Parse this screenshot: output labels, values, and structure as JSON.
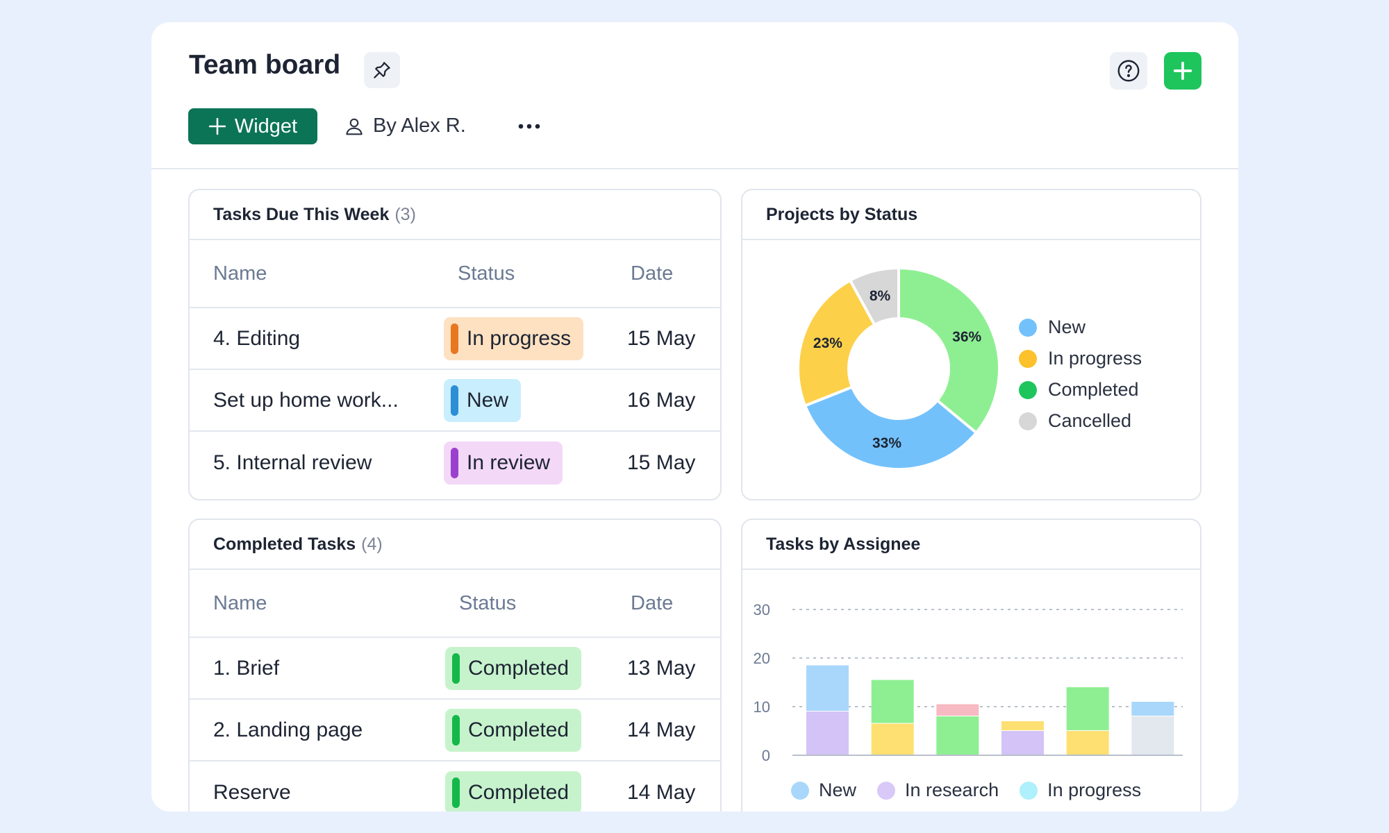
{
  "header": {
    "title": "Team board",
    "widget_label": "Widget",
    "owner": "By Alex R."
  },
  "tasks_due": {
    "title": "Tasks Due This Week",
    "count": "(3)",
    "columns": [
      "Name",
      "Status",
      "Date"
    ],
    "rows": [
      {
        "name": "4. Editing",
        "status": "In progress",
        "date": "15 May",
        "pill_bg": "#fde1c1",
        "bar_color": "#e8771f"
      },
      {
        "name": "Set up home work...",
        "status": "New",
        "date": "16 May",
        "pill_bg": "#c9eefd",
        "bar_color": "#2b8fd6"
      },
      {
        "name": "5. Internal review",
        "status": "In review",
        "date": "15 May",
        "pill_bg": "#f3d8f7",
        "bar_color": "#9b3fcf"
      }
    ]
  },
  "completed": {
    "title": "Completed Tasks",
    "count": "(4)",
    "columns": [
      "Name",
      "Status",
      "Date"
    ],
    "rows": [
      {
        "name": "1. Brief",
        "status": "Completed",
        "date": "13 May",
        "pill_bg": "#c7f3cc",
        "bar_color": "#14b84a"
      },
      {
        "name": "2. Landing page",
        "status": "Completed",
        "date": "14 May",
        "pill_bg": "#c7f3cc",
        "bar_color": "#14b84a"
      },
      {
        "name": "Reserve",
        "status": "Completed",
        "date": "14 May",
        "pill_bg": "#c7f3cc",
        "bar_color": "#14b84a"
      }
    ]
  },
  "projects_by_status": {
    "title": "Projects by Status",
    "chart_data": {
      "type": "pie",
      "donut": true,
      "slices": [
        {
          "name": "Completed",
          "value": 36,
          "label": "36%",
          "color": "#8eef92"
        },
        {
          "name": "New",
          "value": 33,
          "label": "33%",
          "color": "#73c1fb"
        },
        {
          "name": "In progress",
          "value": 23,
          "label": "23%",
          "color": "#fdd04a"
        },
        {
          "name": "Cancelled",
          "value": 8,
          "label": "8%",
          "color": "#d7d7d7"
        }
      ],
      "legend": [
        {
          "name": "New",
          "color": "#73c1fb"
        },
        {
          "name": "In progress",
          "color": "#fcc12b"
        },
        {
          "name": "Completed",
          "color": "#1ec55d"
        },
        {
          "name": "Cancelled",
          "color": "#d7d7d7"
        }
      ],
      "legend_position": "right"
    }
  },
  "tasks_by_assignee": {
    "title": "Tasks by Assignee",
    "chart_data": {
      "type": "bar",
      "stacked": true,
      "ylim": [
        0,
        30
      ],
      "yticks": [
        "0",
        "10",
        "20",
        "30"
      ],
      "grid": true,
      "bars": [
        {
          "segments": [
            {
              "value": 9,
              "color": "#d3c3f7"
            },
            {
              "value": 9.5,
              "color": "#a8d7fb"
            }
          ]
        },
        {
          "segments": [
            {
              "value": 6.5,
              "color": "#fde071"
            },
            {
              "value": 9,
              "color": "#8eef92"
            }
          ]
        },
        {
          "segments": [
            {
              "value": 8,
              "color": "#8eef92"
            },
            {
              "value": 2.5,
              "color": "#f7b9c2"
            }
          ]
        },
        {
          "segments": [
            {
              "value": 5,
              "color": "#d3c3f7"
            },
            {
              "value": 2,
              "color": "#fde071"
            }
          ]
        },
        {
          "segments": [
            {
              "value": 5,
              "color": "#fde071"
            },
            {
              "value": 9,
              "color": "#8eef92"
            }
          ]
        },
        {
          "segments": [
            {
              "value": 8,
              "color": "#e3e7ee"
            },
            {
              "value": 3,
              "color": "#a8d7fb"
            }
          ]
        }
      ],
      "legend": [
        {
          "name": "New",
          "color": "#a8d7fb"
        },
        {
          "name": "In research",
          "color": "#d8c9f8"
        },
        {
          "name": "In progress",
          "color": "#aef0fb"
        }
      ]
    }
  }
}
